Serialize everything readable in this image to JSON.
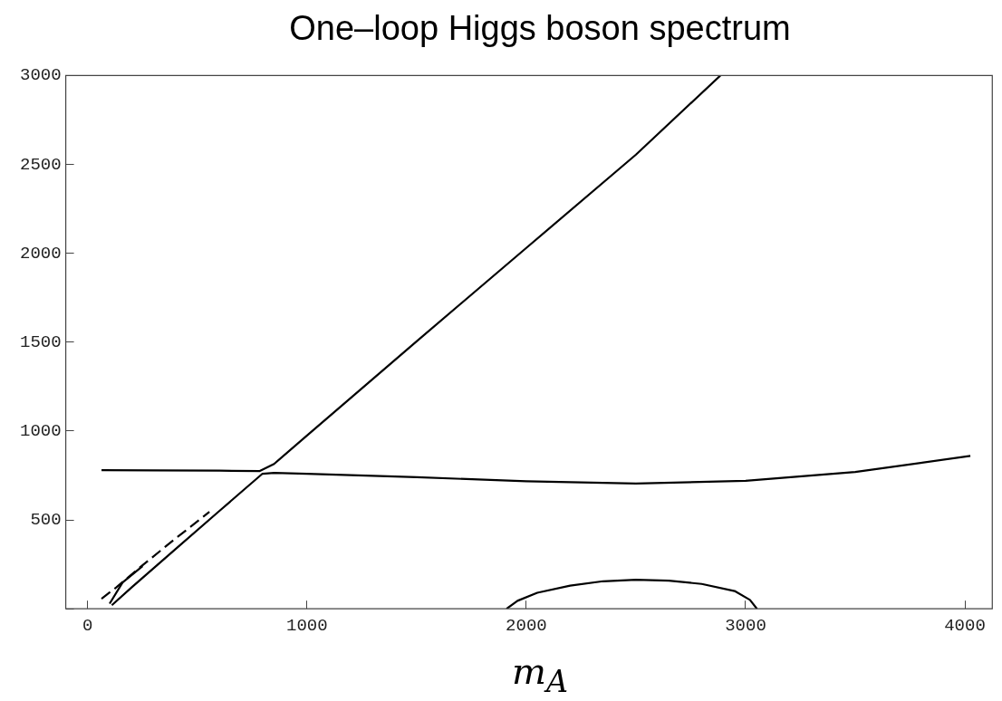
{
  "chart_data": {
    "type": "line",
    "title": "One–loop Higgs boson spectrum",
    "xlabel": "m$_{A}$",
    "xlim": [
      -100,
      4125
    ],
    "ylim": [
      0,
      3000
    ],
    "xticks": [
      0,
      1000,
      2000,
      3000,
      4000
    ],
    "yticks": [
      {
        "value": 0,
        "label": null
      },
      500,
      1000,
      1500,
      2000,
      2500,
      3000
    ],
    "grid": false,
    "legend": false,
    "marker": "none",
    "series": [
      {
        "color": "#000000",
        "x": [
          63,
          300,
          600,
          785,
          850,
          1000,
          1500,
          2000,
          2500,
          2885
        ],
        "values": [
          780,
          779,
          777,
          775,
          815,
          975,
          1505,
          2030,
          2555,
          3000
        ]
      },
      {
        "color": "#000000",
        "x": [
          110,
          200,
          400,
          600,
          797,
          850,
          1000,
          1500,
          2000,
          2500,
          3000,
          3500,
          4025
        ],
        "values": [
          20,
          120,
          335,
          550,
          760,
          765,
          760,
          740,
          718,
          705,
          720,
          770,
          860
        ]
      },
      {
        "color": "#000000",
        "line_style": "dashed",
        "x": [
          63,
          130,
          250,
          400,
          555
        ],
        "values": [
          57,
          120,
          245,
          395,
          545
        ]
      },
      {
        "color": "#000000",
        "x": [
          100,
          159,
          250
        ],
        "values": [
          29,
          148,
          240
        ]
      },
      {
        "color": "#000000",
        "x": [
          1910,
          1960,
          2050,
          2200,
          2350,
          2500,
          2650,
          2800,
          2950,
          3020,
          3052
        ],
        "values": [
          0,
          45,
          90,
          130,
          155,
          163,
          158,
          140,
          100,
          50,
          0
        ]
      }
    ]
  }
}
